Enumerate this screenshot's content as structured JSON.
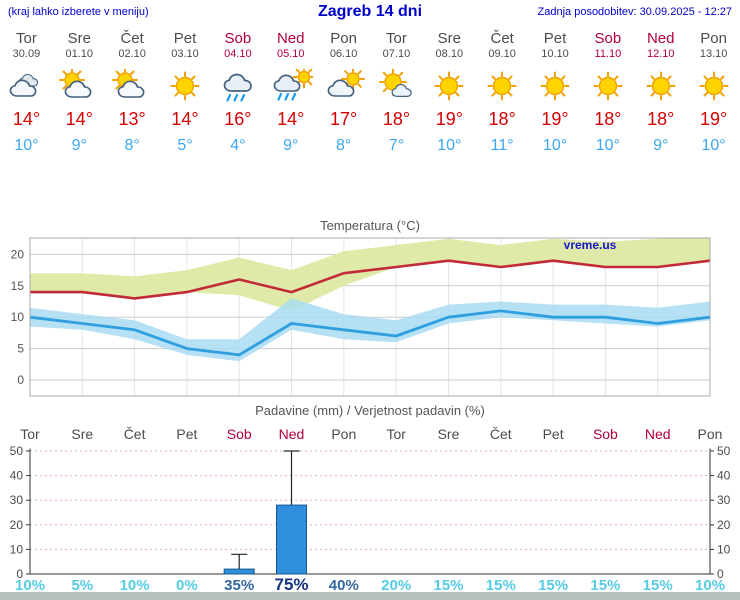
{
  "header": {
    "hint": "(kraj lahko izberete v meniju)",
    "title": "Zagreb 14 dni",
    "updated": "Zadnja posodobitev: 30.09.2025 - 12:27"
  },
  "watermark": "vreme.us",
  "colors": {
    "header_blue": "#0000cc",
    "weekend_red": "#b30038",
    "weekday_gray": "#4c4c4c",
    "high_temp_red": "#d40000",
    "low_temp_blue": "#3aa7f0",
    "temp_max_line": "#c22a38",
    "temp_max_band": "#e0eaa8",
    "temp_min_line": "#2f9fe0",
    "temp_min_band": "#a6dbf2",
    "bar_blue": "#2f8fdc",
    "prob_low": "#56cbe4",
    "prob_mid": "#33669f",
    "prob_high": "#16337f"
  },
  "days": [
    {
      "name": "Tor",
      "date": "30.09",
      "weekend": false,
      "icon": "cloudy",
      "high": "14°",
      "low": "10°"
    },
    {
      "name": "Sre",
      "date": "01.10",
      "weekend": false,
      "icon": "partly-cloudy",
      "high": "14°",
      "low": "9°"
    },
    {
      "name": "Čet",
      "date": "02.10",
      "weekend": false,
      "icon": "partly-cloudy",
      "high": "13°",
      "low": "8°"
    },
    {
      "name": "Pet",
      "date": "03.10",
      "weekend": false,
      "icon": "sunny",
      "high": "14°",
      "low": "5°"
    },
    {
      "name": "Sob",
      "date": "04.10",
      "weekend": true,
      "icon": "rain",
      "high": "16°",
      "low": "4°"
    },
    {
      "name": "Ned",
      "date": "05.10",
      "weekend": true,
      "icon": "rain-sun",
      "high": "14°",
      "low": "9°"
    },
    {
      "name": "Pon",
      "date": "06.10",
      "weekend": false,
      "icon": "mostly-cloudy",
      "high": "17°",
      "low": "8°"
    },
    {
      "name": "Tor",
      "date": "07.10",
      "weekend": false,
      "icon": "mostly-sunny",
      "high": "18°",
      "low": "7°"
    },
    {
      "name": "Sre",
      "date": "08.10",
      "weekend": false,
      "icon": "sunny",
      "high": "19°",
      "low": "10°"
    },
    {
      "name": "Čet",
      "date": "09.10",
      "weekend": false,
      "icon": "sunny",
      "high": "18°",
      "low": "11°"
    },
    {
      "name": "Pet",
      "date": "10.10",
      "weekend": false,
      "icon": "sunny",
      "high": "19°",
      "low": "10°"
    },
    {
      "name": "Sob",
      "date": "11.10",
      "weekend": true,
      "icon": "sunny",
      "high": "18°",
      "low": "10°"
    },
    {
      "name": "Ned",
      "date": "12.10",
      "weekend": true,
      "icon": "sunny",
      "high": "18°",
      "low": "9°"
    },
    {
      "name": "Pon",
      "date": "13.10",
      "weekend": false,
      "icon": "sunny",
      "high": "19°",
      "low": "10°"
    }
  ],
  "chart_data": [
    {
      "type": "line",
      "title": "Temperatura (°C)",
      "x_days": [
        "Tor",
        "Sre",
        "Čet",
        "Pet",
        "Sob",
        "Ned",
        "Pon",
        "Tor",
        "Sre",
        "Čet",
        "Pet",
        "Sob",
        "Ned",
        "Pon"
      ],
      "y_ticks": [
        0,
        5,
        10,
        15,
        20
      ],
      "ylim": [
        -2.5,
        22.5
      ],
      "grid": true,
      "legend": "none",
      "series": [
        {
          "name": "max_temp",
          "values": [
            14,
            14,
            13,
            14,
            16,
            14,
            17,
            18,
            19,
            18,
            19,
            18,
            18,
            19
          ]
        },
        {
          "name": "min_temp",
          "values": [
            10,
            9,
            8,
            5,
            4,
            9,
            8,
            7,
            10,
            11,
            10,
            10,
            9,
            10
          ]
        },
        {
          "name": "max_band_upper",
          "values": [
            17,
            17,
            16.5,
            17.5,
            19.5,
            17.5,
            20.5,
            21.5,
            22.5,
            21.5,
            22.5,
            22,
            22.5,
            23
          ]
        },
        {
          "name": "max_band_lower",
          "values": [
            14,
            14,
            13,
            14,
            13.5,
            11,
            15,
            18,
            19,
            18,
            19,
            18,
            18,
            19
          ]
        },
        {
          "name": "min_band_upper",
          "values": [
            11.5,
            10.5,
            9.5,
            6.5,
            6.5,
            13,
            10.5,
            9.5,
            12,
            12.5,
            12,
            12,
            11.5,
            12.5
          ]
        },
        {
          "name": "min_band_lower",
          "values": [
            8.5,
            8,
            6.5,
            4,
            3,
            8,
            6.5,
            6,
            9,
            10,
            9.5,
            9,
            8.5,
            9.5
          ]
        }
      ]
    },
    {
      "type": "bar",
      "title": "Padavine (mm) / Verjetnost padavin (%)",
      "categories": [
        "Tor",
        "Sre",
        "Čet",
        "Pet",
        "Sob",
        "Ned",
        "Pon",
        "Tor",
        "Sre",
        "Čet",
        "Pet",
        "Sob",
        "Ned",
        "Pon"
      ],
      "weekend": [
        false,
        false,
        false,
        false,
        true,
        true,
        false,
        false,
        false,
        false,
        false,
        true,
        true,
        false
      ],
      "values": [
        0,
        0,
        0,
        0,
        2,
        28,
        0,
        0,
        0,
        0,
        0,
        0,
        0,
        0
      ],
      "whisker_high": [
        null,
        null,
        null,
        null,
        8,
        50,
        null,
        null,
        null,
        null,
        null,
        null,
        null,
        null
      ],
      "probabilities": [
        "10%",
        "5%",
        "10%",
        "0%",
        "35%",
        "75%",
        "40%",
        "20%",
        "15%",
        "15%",
        "15%",
        "15%",
        "15%",
        "10%"
      ],
      "prob_styles": [
        "low",
        "low",
        "low",
        "low",
        "mid",
        "high",
        "mid",
        "low",
        "low",
        "low",
        "low",
        "low",
        "low",
        "low"
      ],
      "y_ticks": [
        0,
        10,
        20,
        30,
        40,
        50
      ],
      "ylim": [
        0,
        52
      ]
    }
  ]
}
